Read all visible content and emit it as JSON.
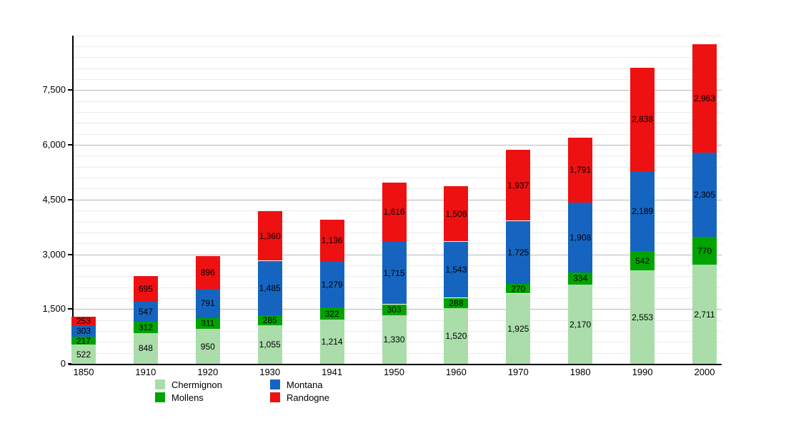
{
  "chart_data": {
    "type": "bar",
    "stacked": true,
    "title": "",
    "xlabel": "",
    "ylabel": "",
    "categories": [
      "1850",
      "1910",
      "1920",
      "1930",
      "1941",
      "1950",
      "1960",
      "1970",
      "1980",
      "1990",
      "2000"
    ],
    "series": [
      {
        "name": "Chermignon",
        "color": "#aaddaa",
        "values": [
          522,
          848,
          950,
          1055,
          1214,
          1330,
          1520,
          1925,
          2170,
          2553,
          2711
        ]
      },
      {
        "name": "Mollens",
        "color": "#00a300",
        "values": [
          217,
          312,
          311,
          285,
          322,
          303,
          288,
          270,
          334,
          542,
          770
        ]
      },
      {
        "name": "Montana",
        "color": "#1565c0",
        "values": [
          303,
          547,
          791,
          1485,
          1279,
          1715,
          1543,
          1725,
          1908,
          2189,
          2305
        ]
      },
      {
        "name": "Randogne",
        "color": "#ee1111",
        "values": [
          253,
          695,
          896,
          1360,
          1136,
          1616,
          1508,
          1937,
          1791,
          2838,
          2963
        ]
      }
    ],
    "value_labels_visible": true,
    "value_label_format": "thousands-comma",
    "yticks": [
      0,
      1500,
      3000,
      4500,
      6000,
      7500
    ],
    "ylim": [
      0,
      9090
    ],
    "minor_grid_step": 300,
    "major_grid_step": 1500,
    "grid": true,
    "legend_position": "bottom",
    "legend_columns": [
      [
        "Chermignon",
        "Mollens"
      ],
      [
        "Montana",
        "Randogne"
      ]
    ],
    "colors": {
      "background": "#ffffff",
      "axis": "#000000",
      "major_gridline": "#b9b9b9",
      "minor_gridline": "#ebebeb",
      "label_text": "#000000"
    }
  }
}
